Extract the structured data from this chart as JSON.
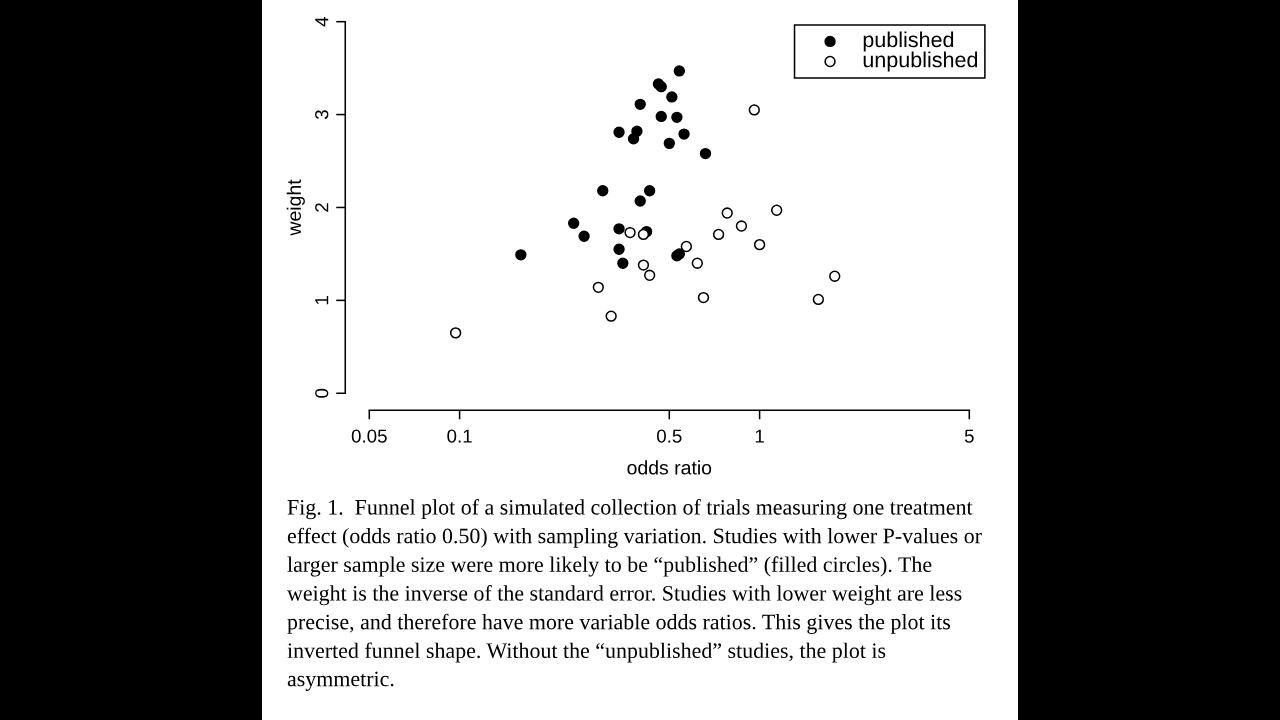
{
  "chart_data": {
    "type": "scatter",
    "xlabel": "odds ratio",
    "ylabel": "weight",
    "log": "x",
    "xlim": [
      0.05,
      5
    ],
    "ylim": [
      0,
      4
    ],
    "xticks": [
      0.05,
      0.1,
      0.5,
      1,
      5
    ],
    "yticks": [
      0,
      1,
      2,
      3,
      4
    ],
    "legend": "top right",
    "marker": "circle",
    "series": [
      {
        "name": "published",
        "color": "#000000",
        "x": [
          0.54,
          0.46,
          0.47,
          0.51,
          0.4,
          0.47,
          0.53,
          0.34,
          0.39,
          0.38,
          0.56,
          0.5,
          0.66,
          0.3,
          0.43,
          0.4,
          0.24,
          0.26,
          0.34,
          0.42,
          0.16,
          0.34,
          0.35,
          0.53,
          0.54
        ],
        "values": [
          3.47,
          3.33,
          3.3,
          3.19,
          3.11,
          2.98,
          2.97,
          2.81,
          2.82,
          2.74,
          2.79,
          2.69,
          2.58,
          2.18,
          2.18,
          2.07,
          1.83,
          1.69,
          1.77,
          1.74,
          1.49,
          1.55,
          1.4,
          1.48,
          1.5
        ]
      },
      {
        "name": "unpublished",
        "color": "#ffffff",
        "x": [
          0.96,
          0.37,
          0.41,
          0.57,
          0.78,
          1.14,
          0.87,
          0.73,
          1.0,
          0.62,
          0.41,
          0.43,
          0.29,
          0.32,
          0.65,
          1.78,
          1.57,
          0.097
        ],
        "values": [
          3.05,
          1.73,
          1.71,
          1.58,
          1.94,
          1.97,
          1.8,
          1.71,
          1.6,
          1.4,
          1.38,
          1.27,
          1.14,
          0.83,
          1.03,
          1.26,
          1.01,
          0.65
        ]
      }
    ],
    "annotations": [
      "Fig. 1.  Funnel plot of a simulated collection of trials measuring one treatment effect (odds ratio 0.50) with sampling variation. Studies with lower P-values or larger sample size were more likely to be “published” (filled circles). The weight is the inverse of the standard error. Studies with lower weight are less precise, and therefore have more variable odds ratios. This gives the plot its inverted funnel shape. Without the “unpublished” studies, the plot is asymmetric."
    ]
  }
}
